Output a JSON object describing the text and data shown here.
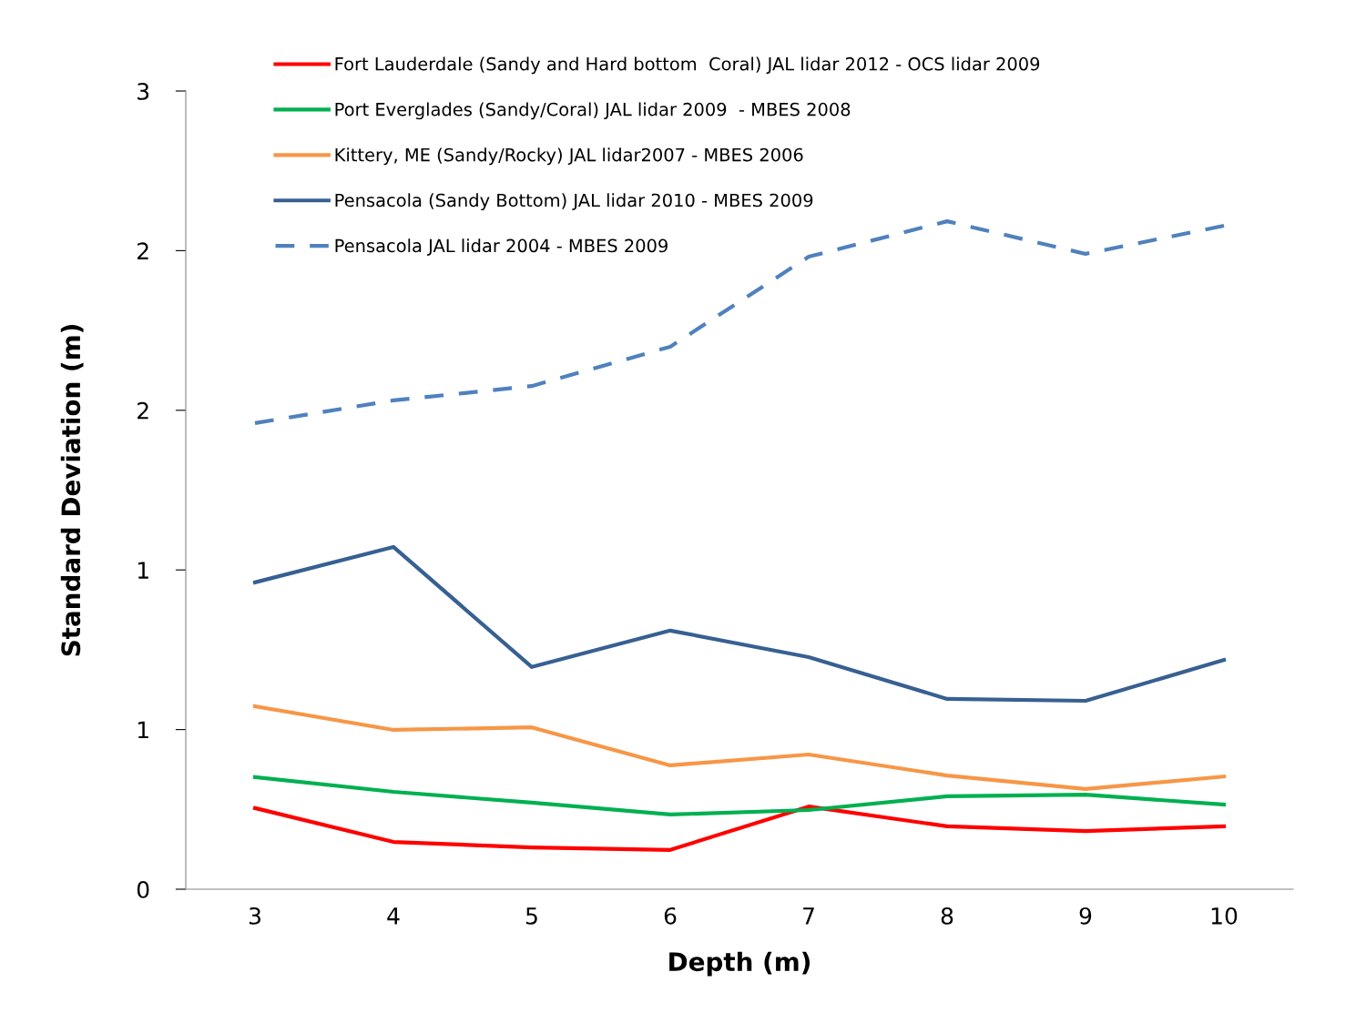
{
  "chart_data": {
    "type": "line",
    "xlabel": "Depth (m)",
    "ylabel": "Standard Deviation (m)",
    "x": [
      3,
      4,
      5,
      6,
      7,
      8,
      9,
      10
    ],
    "xlim": [
      2.5,
      10.5
    ],
    "xticks": [
      3,
      4,
      5,
      6,
      7,
      8,
      9,
      10
    ],
    "ylim": [
      0,
      2.5
    ],
    "yticks": [
      0,
      {
        "value": 0.5,
        "label": "1"
      },
      1,
      {
        "value": 1.5,
        "label": "2"
      },
      2,
      {
        "value": 2.5,
        "label": "3"
      }
    ],
    "grid": false,
    "legend": "top left",
    "marker": "none",
    "series": [
      {
        "name": "Fort Lauderdale (Sandy and Hard bottom  Coral) JAL lidar 2012 - OCS lidar 2009",
        "color": "#ff0000",
        "line_style": "solid",
        "values": [
          0.254,
          0.148,
          0.131,
          0.123,
          0.259,
          0.197,
          0.182,
          0.197
        ]
      },
      {
        "name": "Port Everglades (Sandy/Coral) JAL lidar 2009  - MBES 2008",
        "color": "#00b050",
        "line_style": "solid",
        "values": [
          0.351,
          0.305,
          0.271,
          0.234,
          0.248,
          0.291,
          0.296,
          0.265
        ]
      },
      {
        "name": "Kittery, ME (Sandy/Rocky) JAL lidar2007 - MBES 2006",
        "color": "#f79646",
        "line_style": "solid",
        "values": [
          0.573,
          0.499,
          0.507,
          0.388,
          0.422,
          0.356,
          0.314,
          0.353
        ]
      },
      {
        "name": "Pensacola (Sandy Bottom) JAL lidar 2010 - MBES 2009",
        "color": "#376092",
        "line_style": "solid",
        "values": [
          0.961,
          1.072,
          0.696,
          0.81,
          0.727,
          0.596,
          0.59,
          0.718
        ]
      },
      {
        "name": "Pensacola JAL lidar 2004 - MBES 2009",
        "color": "#4f81bd",
        "line_style": "dashed",
        "values": [
          1.46,
          1.531,
          1.576,
          1.699,
          1.981,
          2.092,
          1.99,
          2.078
        ]
      }
    ]
  }
}
